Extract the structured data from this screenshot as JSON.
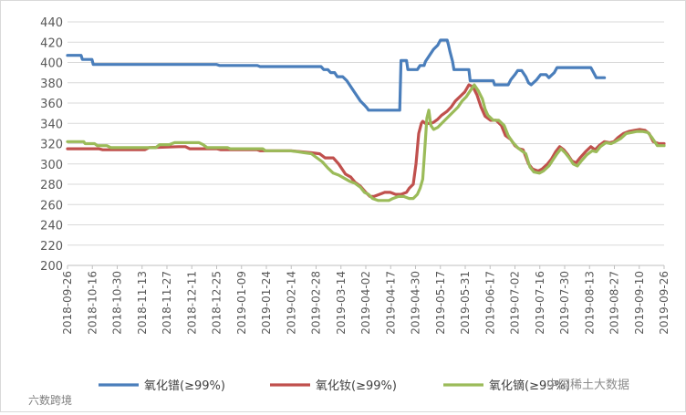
{
  "chart_data": {
    "type": "line",
    "title": "",
    "xlabel": "",
    "ylabel": "",
    "ylim": [
      200,
      440
    ],
    "yticks": [
      200,
      220,
      240,
      260,
      280,
      300,
      320,
      340,
      360,
      380,
      400,
      420,
      440
    ],
    "ytick_labels": [
      "200",
      "220",
      "240",
      "260",
      "280",
      "300",
      "320",
      "340",
      "360",
      "380",
      "400",
      "420",
      "440"
    ],
    "x_categories": [
      "2018-09-26",
      "2018-10-16",
      "2018-10-30",
      "2018-11-13",
      "2018-11-27",
      "2018-12-11",
      "2018-12-25",
      "2019-01-09",
      "2019-01-24",
      "2019-02-14",
      "2019-02-28",
      "2019-03-14",
      "2019-04-02",
      "2019-04-17",
      "2019-04-30",
      "2019-05-17",
      "2019-05-31",
      "2019-06-17",
      "2019-07-02",
      "2019-07-16",
      "2019-07-30",
      "2019-08-13",
      "2019-08-27",
      "2019-09-10",
      "2019-09-26"
    ],
    "grid": true,
    "legend_position": "bottom",
    "series": [
      {
        "name": "氧化镨(≥99%)",
        "color": "#4a7ebb",
        "points": [
          [
            0,
            407
          ],
          [
            1,
            407
          ],
          [
            1.1,
            403
          ],
          [
            1.8,
            403
          ],
          [
            1.9,
            398
          ],
          [
            10,
            398
          ],
          [
            11,
            398
          ],
          [
            11.2,
            397
          ],
          [
            14,
            397
          ],
          [
            14.2,
            396
          ],
          [
            18.7,
            396
          ],
          [
            18.9,
            393
          ],
          [
            19.2,
            393
          ],
          [
            19.4,
            390
          ],
          [
            19.7,
            390
          ],
          [
            19.9,
            386
          ],
          [
            20.3,
            386
          ],
          [
            20.6,
            382
          ],
          [
            20.8,
            378
          ],
          [
            21.0,
            374
          ],
          [
            21.2,
            370
          ],
          [
            21.4,
            366
          ],
          [
            21.6,
            362
          ],
          [
            21.9,
            358
          ],
          [
            22.1,
            355
          ],
          [
            22.2,
            353
          ],
          [
            24.5,
            353
          ],
          [
            24.6,
            402
          ],
          [
            25.0,
            402
          ],
          [
            25.1,
            393
          ],
          [
            25.8,
            393
          ],
          [
            26.0,
            397
          ],
          [
            26.3,
            397
          ],
          [
            26.4,
            401
          ],
          [
            26.6,
            405
          ],
          [
            26.8,
            409
          ],
          [
            27.0,
            413
          ],
          [
            27.3,
            417
          ],
          [
            27.5,
            422
          ],
          [
            28.0,
            422
          ],
          [
            28.1,
            417
          ],
          [
            28.2,
            411
          ],
          [
            28.4,
            401
          ],
          [
            28.5,
            393
          ],
          [
            29.6,
            393
          ],
          [
            29.7,
            382
          ],
          [
            31.4,
            382
          ],
          [
            31.5,
            378
          ],
          [
            32.5,
            378
          ],
          [
            32.7,
            383
          ],
          [
            33.0,
            388
          ],
          [
            33.2,
            392
          ],
          [
            33.5,
            392
          ],
          [
            33.8,
            386
          ],
          [
            34.0,
            380
          ],
          [
            34.2,
            378
          ],
          [
            34.6,
            383
          ],
          [
            34.9,
            388
          ],
          [
            35.3,
            388
          ],
          [
            35.5,
            385
          ],
          [
            35.9,
            390
          ],
          [
            36.1,
            395
          ],
          [
            38.6,
            395
          ],
          [
            38.8,
            390
          ],
          [
            39.0,
            385
          ],
          [
            39.6,
            385
          ]
        ]
      },
      {
        "name": "氧化钕(≥99%)",
        "color": "#c0504d",
        "points": [
          [
            0,
            315
          ],
          [
            2.3,
            315
          ],
          [
            2.6,
            314
          ],
          [
            5.7,
            314
          ],
          [
            6,
            316
          ],
          [
            8.2,
            317
          ],
          [
            8.7,
            317
          ],
          [
            9,
            315
          ],
          [
            11,
            315
          ],
          [
            11.3,
            314
          ],
          [
            14,
            314
          ],
          [
            14.2,
            313
          ],
          [
            14.6,
            313
          ],
          [
            15.5,
            313
          ],
          [
            16.5,
            313
          ],
          [
            17.2,
            312
          ],
          [
            18,
            311
          ],
          [
            18.6,
            310
          ],
          [
            19,
            306
          ],
          [
            19.6,
            306
          ],
          [
            20,
            300
          ],
          [
            20.3,
            294
          ],
          [
            20.5,
            290
          ],
          [
            20.9,
            287
          ],
          [
            21.2,
            282
          ],
          [
            21.6,
            278
          ],
          [
            22,
            272
          ],
          [
            22.3,
            268
          ],
          [
            22.6,
            268
          ],
          [
            23,
            270
          ],
          [
            23.4,
            272
          ],
          [
            23.8,
            272
          ],
          [
            24.2,
            270
          ],
          [
            24.6,
            270
          ],
          [
            25,
            272
          ],
          [
            25.2,
            276
          ],
          [
            25.5,
            280
          ],
          [
            25.7,
            300
          ],
          [
            25.9,
            330
          ],
          [
            26.1,
            340
          ],
          [
            26.2,
            342
          ],
          [
            26.4,
            340
          ],
          [
            26.8,
            340
          ],
          [
            27,
            341
          ],
          [
            27.3,
            344
          ],
          [
            27.6,
            348
          ],
          [
            28,
            352
          ],
          [
            28.3,
            356
          ],
          [
            28.6,
            362
          ],
          [
            29,
            367
          ],
          [
            29.3,
            371
          ],
          [
            29.6,
            378
          ],
          [
            29.9,
            376
          ],
          [
            30.2,
            368
          ],
          [
            30.5,
            356
          ],
          [
            30.8,
            347
          ],
          [
            31.2,
            343
          ],
          [
            31.6,
            343
          ],
          [
            32,
            338
          ],
          [
            32.3,
            328
          ],
          [
            32.7,
            324
          ],
          [
            33,
            318
          ],
          [
            33.3,
            315
          ],
          [
            33.6,
            314
          ],
          [
            34,
            300
          ],
          [
            34.3,
            295
          ],
          [
            34.7,
            293
          ],
          [
            35,
            295
          ],
          [
            35.4,
            300
          ],
          [
            35.7,
            305
          ],
          [
            36,
            312
          ],
          [
            36.3,
            317
          ],
          [
            36.6,
            314
          ],
          [
            36.9,
            309
          ],
          [
            37.2,
            303
          ],
          [
            37.5,
            301
          ],
          [
            37.8,
            306
          ],
          [
            38.2,
            312
          ],
          [
            38.6,
            317
          ],
          [
            38.9,
            314
          ],
          [
            39.2,
            318
          ],
          [
            39.6,
            322
          ],
          [
            40,
            321
          ],
          [
            40.3,
            322
          ],
          [
            40.6,
            326
          ],
          [
            41,
            330
          ],
          [
            41.4,
            332
          ],
          [
            41.8,
            333
          ],
          [
            42.2,
            334
          ],
          [
            42.6,
            333
          ],
          [
            42.9,
            330
          ],
          [
            43.2,
            322
          ],
          [
            43.6,
            320
          ],
          [
            44,
            320
          ]
        ]
      },
      {
        "name": "氧化镝(≥99%)",
        "color": "#9bbb59",
        "points": [
          [
            0,
            322
          ],
          [
            1.2,
            322
          ],
          [
            1.3,
            320
          ],
          [
            2,
            320
          ],
          [
            2.2,
            318
          ],
          [
            2.9,
            318
          ],
          [
            3.2,
            316
          ],
          [
            6.5,
            316
          ],
          [
            6.8,
            319
          ],
          [
            7.5,
            319
          ],
          [
            7.9,
            321
          ],
          [
            9.7,
            321
          ],
          [
            10,
            319
          ],
          [
            10.3,
            316
          ],
          [
            11.8,
            316
          ],
          [
            12,
            315
          ],
          [
            14.4,
            315
          ],
          [
            14.6,
            313
          ],
          [
            16.4,
            313
          ],
          [
            17,
            312
          ],
          [
            17.5,
            311
          ],
          [
            18,
            310
          ],
          [
            18.4,
            306
          ],
          [
            18.8,
            302
          ],
          [
            19.2,
            296
          ],
          [
            19.6,
            291
          ],
          [
            20,
            289
          ],
          [
            20.4,
            286
          ],
          [
            20.8,
            283
          ],
          [
            21.2,
            281
          ],
          [
            21.6,
            277
          ],
          [
            21.9,
            272
          ],
          [
            22.2,
            270
          ],
          [
            22.5,
            266
          ],
          [
            22.9,
            264
          ],
          [
            23.3,
            264
          ],
          [
            23.7,
            264
          ],
          [
            24,
            266
          ],
          [
            24.4,
            268
          ],
          [
            24.8,
            268
          ],
          [
            25.2,
            266
          ],
          [
            25.5,
            266
          ],
          [
            25.8,
            270
          ],
          [
            26.0,
            276
          ],
          [
            26.2,
            285
          ],
          [
            26.35,
            315
          ],
          [
            26.5,
            345
          ],
          [
            26.65,
            353
          ],
          [
            26.8,
            338
          ],
          [
            27,
            334
          ],
          [
            27.3,
            336
          ],
          [
            27.6,
            340
          ],
          [
            27.9,
            344
          ],
          [
            28.2,
            348
          ],
          [
            28.5,
            352
          ],
          [
            28.8,
            356
          ],
          [
            29.1,
            362
          ],
          [
            29.4,
            366
          ],
          [
            29.7,
            372
          ],
          [
            30,
            378
          ],
          [
            30.3,
            372
          ],
          [
            30.6,
            364
          ],
          [
            30.8,
            354
          ],
          [
            31,
            348
          ],
          [
            31.4,
            343
          ],
          [
            31.8,
            343
          ],
          [
            32.2,
            338
          ],
          [
            32.5,
            328
          ],
          [
            32.8,
            322
          ],
          [
            33.2,
            316
          ],
          [
            33.5,
            313
          ],
          [
            33.8,
            310
          ],
          [
            34.1,
            297
          ],
          [
            34.4,
            292
          ],
          [
            34.8,
            291
          ],
          [
            35.1,
            293
          ],
          [
            35.5,
            298
          ],
          [
            35.8,
            304
          ],
          [
            36.1,
            310
          ],
          [
            36.4,
            315
          ],
          [
            36.7,
            311
          ],
          [
            37,
            306
          ],
          [
            37.3,
            300
          ],
          [
            37.6,
            298
          ],
          [
            37.9,
            303
          ],
          [
            38.3,
            309
          ],
          [
            38.7,
            313
          ],
          [
            39,
            312
          ],
          [
            39.3,
            317
          ],
          [
            39.7,
            321
          ],
          [
            40.1,
            320
          ],
          [
            40.4,
            322
          ],
          [
            40.8,
            325
          ],
          [
            41.2,
            330
          ],
          [
            41.6,
            331
          ],
          [
            42,
            332
          ],
          [
            42.4,
            332
          ],
          [
            42.8,
            331
          ],
          [
            43.1,
            326
          ],
          [
            43.5,
            318
          ],
          [
            44,
            318
          ]
        ]
      }
    ]
  },
  "watermark_left": "六数跨境",
  "watermark_right": "中国稀土大数据"
}
